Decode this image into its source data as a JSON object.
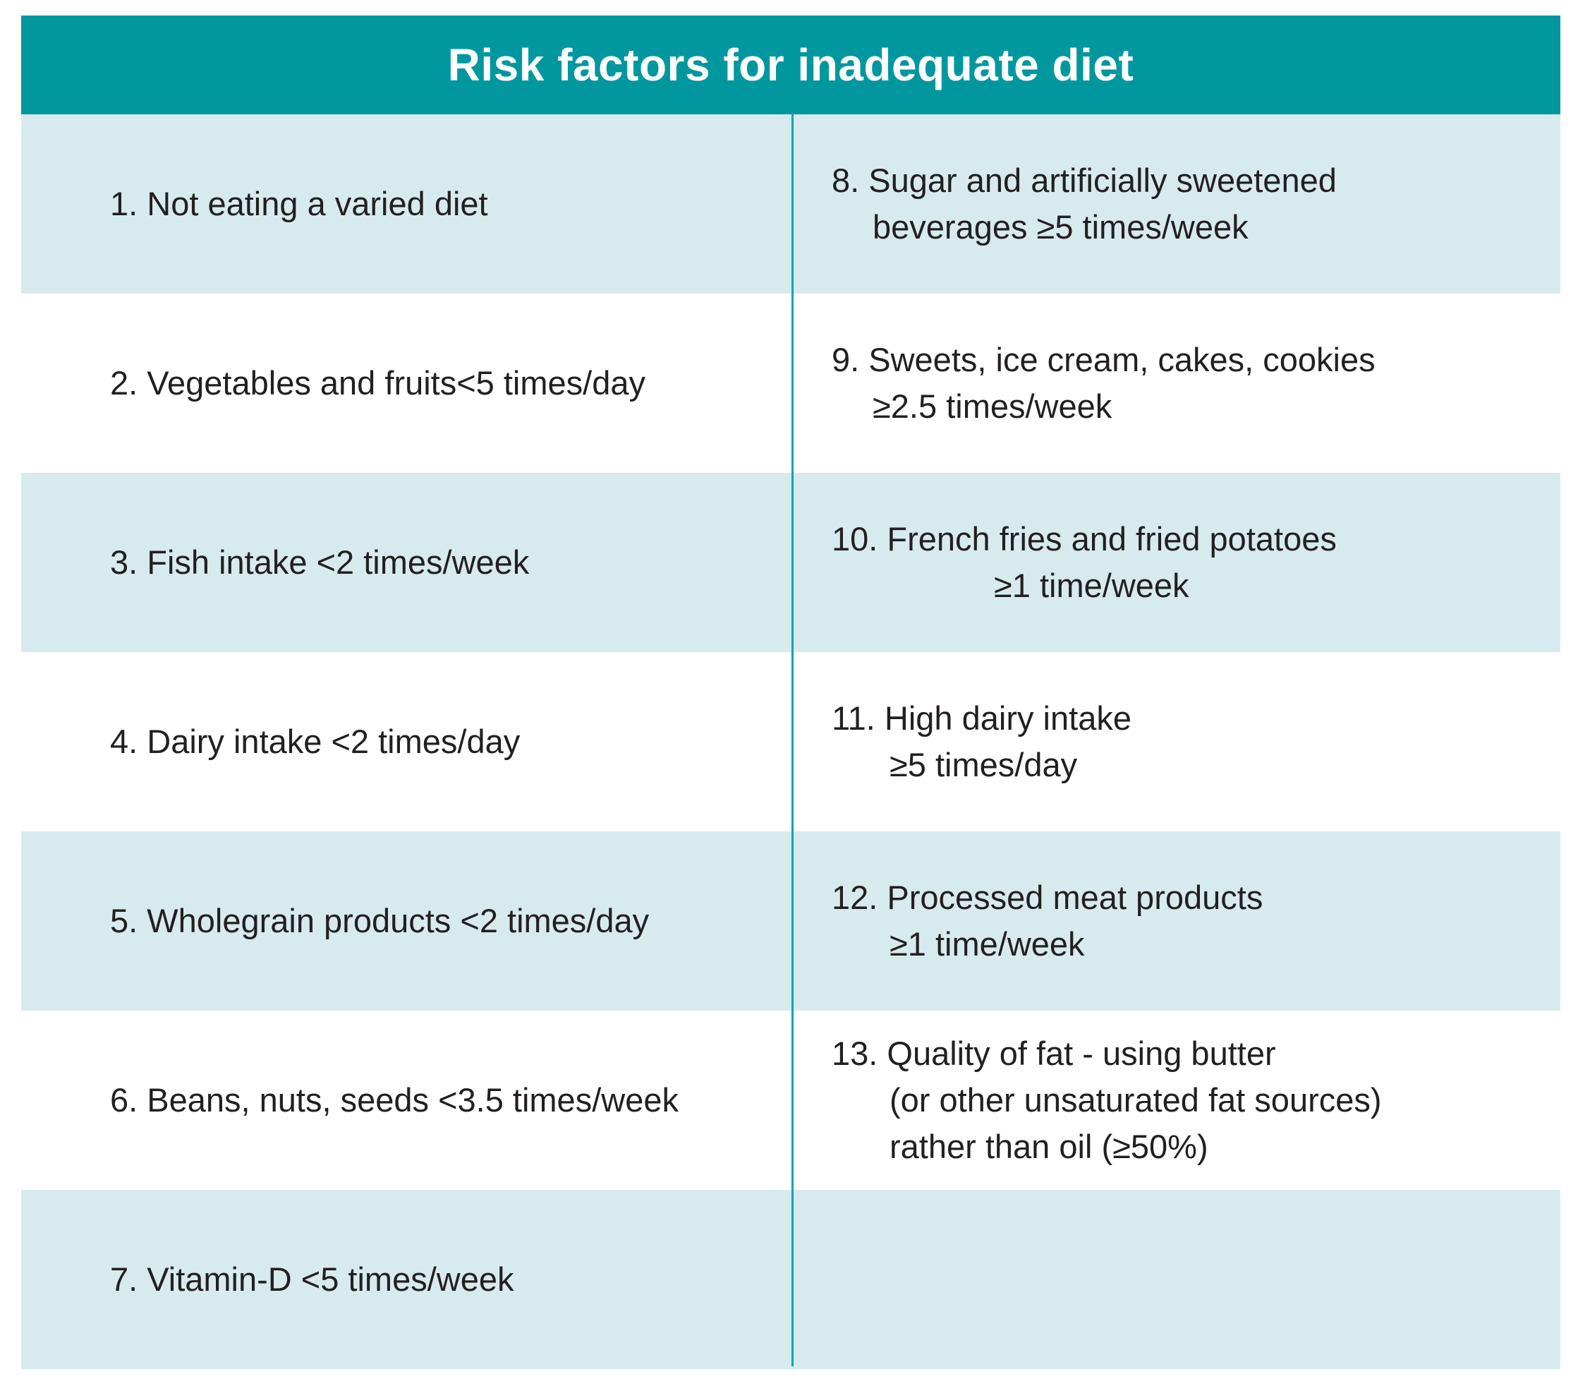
{
  "header": {
    "title": "Risk factors for inadequate diet"
  },
  "rows": [
    {
      "left": "1. Not eating a varied diet",
      "right": {
        "line1": "8. Sugar and artificially sweetened",
        "line2": "beverages ≥5 times/week"
      }
    },
    {
      "left": "2. Vegetables and fruits<5 times/day",
      "right": {
        "line1": "9. Sweets, ice cream, cakes, cookies",
        "line2": "≥2.5 times/week"
      }
    },
    {
      "left": "3. Fish intake <2 times/week",
      "right": {
        "line1": "10. French fries and fried potatoes",
        "line2": "≥1 time/week"
      }
    },
    {
      "left": "4. Dairy intake <2 times/day",
      "right": {
        "line1": "11. High dairy intake",
        "line2": "≥5 times/day"
      }
    },
    {
      "left": "5. Wholegrain products <2 times/day",
      "right": {
        "line1": "12. Processed meat products",
        "line2": "≥1 time/week"
      }
    },
    {
      "left": "6. Beans, nuts, seeds <3.5 times/week",
      "right": {
        "line1": "13. Quality of fat - using butter",
        "line2": "(or other unsaturated fat sources)",
        "line3": "rather than oil (≥50%)"
      }
    },
    {
      "left": "7. Vitamin-D <5 times/week"
    }
  ],
  "colors": {
    "header_bg": "#00989e",
    "shaded_row": "#d7ebee",
    "divider": "#00a7b1"
  }
}
